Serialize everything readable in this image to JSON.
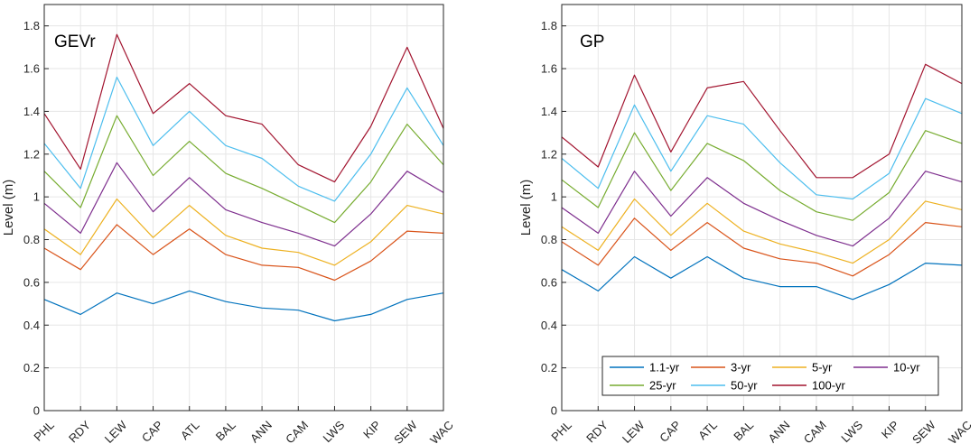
{
  "chart_data": [
    {
      "type": "line",
      "title": "GEVr",
      "xlabel": "",
      "ylabel": "Level (m)",
      "ylim": [
        0,
        1.9
      ],
      "yticks": [
        "0",
        "0.2",
        "0.4",
        "0.6",
        "0.8",
        "1",
        "1.2",
        "1.4",
        "1.6",
        "1.8"
      ],
      "grid": true,
      "categories": [
        "PHL",
        "RDY",
        "LEW",
        "CAP",
        "ATL",
        "BAL",
        "ANN",
        "CAM",
        "LWS",
        "KIP",
        "SEW",
        "WAC"
      ],
      "series": [
        {
          "name": "1.1-yr",
          "color": "#0072BD",
          "values": [
            0.52,
            0.45,
            0.55,
            0.5,
            0.56,
            0.51,
            0.48,
            0.47,
            0.42,
            0.45,
            0.52,
            0.55
          ]
        },
        {
          "name": "3-yr",
          "color": "#D95319",
          "values": [
            0.76,
            0.66,
            0.87,
            0.73,
            0.85,
            0.73,
            0.68,
            0.67,
            0.61,
            0.7,
            0.84,
            0.83
          ]
        },
        {
          "name": "5-yr",
          "color": "#EDB120",
          "values": [
            0.85,
            0.73,
            0.99,
            0.81,
            0.96,
            0.82,
            0.76,
            0.74,
            0.68,
            0.79,
            0.96,
            0.92
          ]
        },
        {
          "name": "10-yr",
          "color": "#7E2F8E",
          "values": [
            0.97,
            0.83,
            1.16,
            0.93,
            1.09,
            0.94,
            0.88,
            0.83,
            0.77,
            0.92,
            1.12,
            1.02
          ]
        },
        {
          "name": "25-yr",
          "color": "#77AC30",
          "values": [
            1.12,
            0.95,
            1.38,
            1.1,
            1.26,
            1.11,
            1.04,
            0.96,
            0.88,
            1.07,
            1.34,
            1.15
          ]
        },
        {
          "name": "50-yr",
          "color": "#4DBEEE",
          "values": [
            1.25,
            1.04,
            1.56,
            1.24,
            1.4,
            1.24,
            1.18,
            1.05,
            0.98,
            1.2,
            1.51,
            1.24
          ]
        },
        {
          "name": "100-yr",
          "color": "#A2142F",
          "values": [
            1.39,
            1.13,
            1.76,
            1.39,
            1.53,
            1.38,
            1.34,
            1.15,
            1.07,
            1.33,
            1.7,
            1.32
          ]
        }
      ]
    },
    {
      "type": "line",
      "title": "GP",
      "xlabel": "",
      "ylabel": "Level (m)",
      "ylim": [
        0,
        1.9
      ],
      "yticks": [
        "0",
        "0.2",
        "0.4",
        "0.6",
        "0.8",
        "1",
        "1.2",
        "1.4",
        "1.6",
        "1.8"
      ],
      "grid": true,
      "legend_position": "bottom-right",
      "categories": [
        "PHL",
        "RDY",
        "LEW",
        "CAP",
        "ATL",
        "BAL",
        "ANN",
        "CAM",
        "LWS",
        "KIP",
        "SEW",
        "WAC"
      ],
      "series": [
        {
          "name": "1.1-yr",
          "color": "#0072BD",
          "values": [
            0.66,
            0.56,
            0.72,
            0.62,
            0.72,
            0.62,
            0.58,
            0.58,
            0.52,
            0.59,
            0.69,
            0.68
          ]
        },
        {
          "name": "3-yr",
          "color": "#D95319",
          "values": [
            0.79,
            0.68,
            0.9,
            0.75,
            0.88,
            0.76,
            0.71,
            0.69,
            0.63,
            0.73,
            0.88,
            0.86
          ]
        },
        {
          "name": "5-yr",
          "color": "#EDB120",
          "values": [
            0.86,
            0.75,
            0.99,
            0.82,
            0.97,
            0.84,
            0.78,
            0.74,
            0.69,
            0.8,
            0.98,
            0.94
          ]
        },
        {
          "name": "10-yr",
          "color": "#7E2F8E",
          "values": [
            0.95,
            0.83,
            1.12,
            0.91,
            1.09,
            0.97,
            0.89,
            0.82,
            0.77,
            0.9,
            1.12,
            1.07
          ]
        },
        {
          "name": "25-yr",
          "color": "#77AC30",
          "values": [
            1.08,
            0.95,
            1.3,
            1.03,
            1.25,
            1.17,
            1.03,
            0.93,
            0.89,
            1.02,
            1.31,
            1.25
          ]
        },
        {
          "name": "50-yr",
          "color": "#4DBEEE",
          "values": [
            1.18,
            1.04,
            1.43,
            1.12,
            1.38,
            1.34,
            1.16,
            1.01,
            0.99,
            1.11,
            1.46,
            1.39
          ]
        },
        {
          "name": "100-yr",
          "color": "#A2142F",
          "values": [
            1.28,
            1.14,
            1.57,
            1.21,
            1.51,
            1.54,
            1.31,
            1.09,
            1.09,
            1.2,
            1.62,
            1.53
          ]
        }
      ]
    }
  ]
}
